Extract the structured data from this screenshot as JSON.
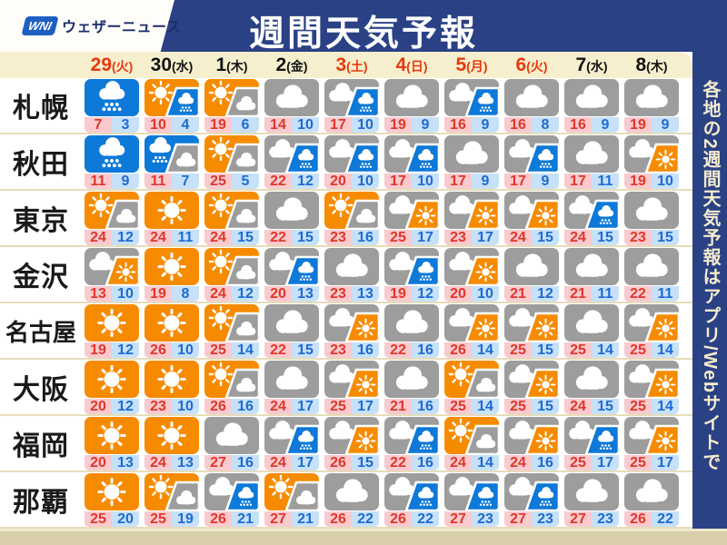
{
  "logo": {
    "mark": "WNI",
    "name": "ウェザーニュース"
  },
  "header": {
    "title": "週間天気予報"
  },
  "side_note": "各地の2週間天気予報はアプリ/Webサイトで",
  "colors": {
    "navy": "#2b4185",
    "cream": "#f6efcd",
    "separator": "#e6ddba",
    "icon_orange": "#f78b00",
    "icon_gray": "#9d9d9d",
    "icon_blue": "#0d79d8",
    "high_bg": "#f9cace",
    "high_text": "#e0362a",
    "low_bg": "#c7e1f8",
    "low_text": "#1d6ad3",
    "date_red": "#e8380d"
  },
  "columns": [
    {
      "day": "29",
      "weekday": "(火)",
      "red": true
    },
    {
      "day": "30",
      "weekday": "(水)",
      "red": false
    },
    {
      "day": "1",
      "weekday": "(木)",
      "red": false
    },
    {
      "day": "2",
      "weekday": "(金)",
      "red": false
    },
    {
      "day": "3",
      "weekday": "(土)",
      "red": true
    },
    {
      "day": "4",
      "weekday": "(日)",
      "red": true
    },
    {
      "day": "5",
      "weekday": "(月)",
      "red": true
    },
    {
      "day": "6",
      "weekday": "(火)",
      "red": true
    },
    {
      "day": "7",
      "weekday": "(水)",
      "red": false
    },
    {
      "day": "8",
      "weekday": "(木)",
      "red": false
    }
  ],
  "rows": [
    {
      "city": "札幌",
      "cells": [
        {
          "icon": "rain",
          "high": 7,
          "low": 3
        },
        {
          "icon": "sun_rain",
          "high": 10,
          "low": 4
        },
        {
          "icon": "sun_cloud",
          "high": 19,
          "low": 6
        },
        {
          "icon": "cloud",
          "high": 14,
          "low": 10
        },
        {
          "icon": "cloud_rain",
          "high": 17,
          "low": 10
        },
        {
          "icon": "cloud",
          "high": 19,
          "low": 9
        },
        {
          "icon": "cloud_rain",
          "high": 16,
          "low": 9
        },
        {
          "icon": "cloud",
          "high": 16,
          "low": 8
        },
        {
          "icon": "cloud",
          "high": 16,
          "low": 9
        },
        {
          "icon": "cloud",
          "high": 19,
          "low": 9
        }
      ]
    },
    {
      "city": "秋田",
      "cells": [
        {
          "icon": "rain",
          "high": 11,
          "low": 9
        },
        {
          "icon": "rain_cloud",
          "high": 11,
          "low": 7
        },
        {
          "icon": "sun_cloud",
          "high": 25,
          "low": 5
        },
        {
          "icon": "cloud_rain",
          "high": 22,
          "low": 12
        },
        {
          "icon": "cloud_rain",
          "high": 20,
          "low": 10
        },
        {
          "icon": "cloud_rain",
          "high": 17,
          "low": 10
        },
        {
          "icon": "cloud",
          "high": 17,
          "low": 9
        },
        {
          "icon": "cloud_rain",
          "high": 17,
          "low": 9
        },
        {
          "icon": "cloud",
          "high": 17,
          "low": 11
        },
        {
          "icon": "cloud_sun",
          "high": 19,
          "low": 10
        }
      ]
    },
    {
      "city": "東京",
      "cells": [
        {
          "icon": "sun_cloud",
          "high": 24,
          "low": 12
        },
        {
          "icon": "sun",
          "high": 24,
          "low": 11
        },
        {
          "icon": "sun_cloud",
          "high": 24,
          "low": 15
        },
        {
          "icon": "cloud",
          "high": 22,
          "low": 15
        },
        {
          "icon": "sun_cloud",
          "high": 23,
          "low": 16
        },
        {
          "icon": "cloud_sun",
          "high": 25,
          "low": 17
        },
        {
          "icon": "cloud_sun",
          "high": 23,
          "low": 17
        },
        {
          "icon": "cloud_sun",
          "high": 24,
          "low": 15
        },
        {
          "icon": "cloud_rain",
          "high": 24,
          "low": 15
        },
        {
          "icon": "cloud",
          "high": 23,
          "low": 15
        }
      ]
    },
    {
      "city": "金沢",
      "cells": [
        {
          "icon": "cloud_sun",
          "high": 13,
          "low": 10
        },
        {
          "icon": "sun",
          "high": 19,
          "low": 8
        },
        {
          "icon": "sun_cloud",
          "high": 24,
          "low": 12
        },
        {
          "icon": "cloud_rain",
          "high": 20,
          "low": 13
        },
        {
          "icon": "cloud",
          "high": 23,
          "low": 13
        },
        {
          "icon": "cloud_rain",
          "high": 19,
          "low": 12
        },
        {
          "icon": "cloud_sun",
          "high": 20,
          "low": 10
        },
        {
          "icon": "cloud",
          "high": 21,
          "low": 12
        },
        {
          "icon": "cloud",
          "high": 21,
          "low": 11
        },
        {
          "icon": "cloud",
          "high": 22,
          "low": 11
        }
      ]
    },
    {
      "city": "名古屋",
      "cells": [
        {
          "icon": "sun",
          "high": 19,
          "low": 12
        },
        {
          "icon": "sun",
          "high": 26,
          "low": 10
        },
        {
          "icon": "sun_cloud",
          "high": 25,
          "low": 14
        },
        {
          "icon": "cloud",
          "high": 22,
          "low": 15
        },
        {
          "icon": "cloud_sun",
          "high": 23,
          "low": 16
        },
        {
          "icon": "cloud",
          "high": 22,
          "low": 16
        },
        {
          "icon": "cloud_sun",
          "high": 26,
          "low": 14
        },
        {
          "icon": "cloud_sun",
          "high": 25,
          "low": 15
        },
        {
          "icon": "cloud",
          "high": 25,
          "low": 14
        },
        {
          "icon": "cloud_sun",
          "high": 25,
          "low": 14
        }
      ]
    },
    {
      "city": "大阪",
      "cells": [
        {
          "icon": "sun",
          "high": 20,
          "low": 12
        },
        {
          "icon": "sun",
          "high": 23,
          "low": 10
        },
        {
          "icon": "sun_cloud",
          "high": 26,
          "low": 16
        },
        {
          "icon": "cloud",
          "high": 24,
          "low": 17
        },
        {
          "icon": "cloud_sun",
          "high": 25,
          "low": 17
        },
        {
          "icon": "cloud",
          "high": 21,
          "low": 16
        },
        {
          "icon": "sun_cloud",
          "high": 25,
          "low": 14
        },
        {
          "icon": "cloud_sun",
          "high": 25,
          "low": 15
        },
        {
          "icon": "cloud",
          "high": 24,
          "low": 15
        },
        {
          "icon": "cloud_sun",
          "high": 25,
          "low": 14
        }
      ]
    },
    {
      "city": "福岡",
      "cells": [
        {
          "icon": "sun",
          "high": 20,
          "low": 13
        },
        {
          "icon": "sun",
          "high": 24,
          "low": 13
        },
        {
          "icon": "cloud",
          "high": 27,
          "low": 16
        },
        {
          "icon": "cloud_rain",
          "high": 24,
          "low": 17
        },
        {
          "icon": "cloud_sun",
          "high": 26,
          "low": 15
        },
        {
          "icon": "cloud_rain",
          "high": 22,
          "low": 16
        },
        {
          "icon": "sun_cloud",
          "high": 24,
          "low": 14
        },
        {
          "icon": "cloud_sun",
          "high": 24,
          "low": 16
        },
        {
          "icon": "cloud_rain",
          "high": 25,
          "low": 17
        },
        {
          "icon": "cloud_sun",
          "high": 25,
          "low": 17
        }
      ]
    },
    {
      "city": "那覇",
      "cells": [
        {
          "icon": "sun",
          "high": 25,
          "low": 20
        },
        {
          "icon": "sun_cloud",
          "high": 25,
          "low": 19
        },
        {
          "icon": "cloud_rain",
          "high": 26,
          "low": 21
        },
        {
          "icon": "sun_cloud",
          "high": 27,
          "low": 21
        },
        {
          "icon": "cloud",
          "high": 26,
          "low": 22
        },
        {
          "icon": "cloud_rain",
          "high": 26,
          "low": 22
        },
        {
          "icon": "cloud_rain",
          "high": 27,
          "low": 23
        },
        {
          "icon": "cloud_rain",
          "high": 27,
          "low": 23
        },
        {
          "icon": "cloud",
          "high": 27,
          "low": 23
        },
        {
          "icon": "cloud",
          "high": 26,
          "low": 22
        }
      ]
    }
  ]
}
